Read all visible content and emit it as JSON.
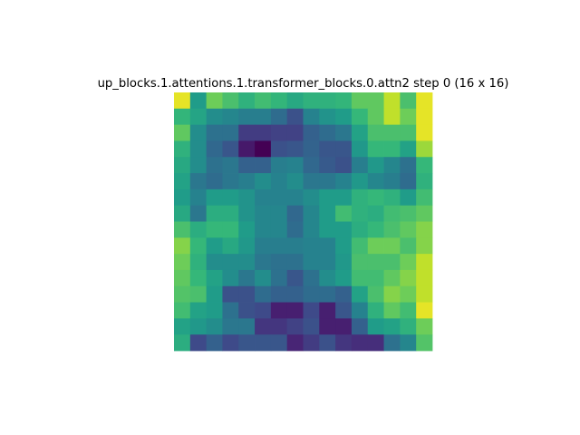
{
  "chart_data": {
    "type": "heatmap",
    "title": "up_blocks.1.attentions.1.transformer_blocks.0.attn2 step 0 (16 x 16)",
    "xlabel": "",
    "ylabel": "",
    "rows": 16,
    "cols": 16,
    "colormap": "viridis",
    "value_range": [
      0,
      1
    ],
    "axes_visible": false,
    "grid": false,
    "values": [
      [
        0.98,
        0.62,
        0.88,
        0.8,
        0.72,
        0.78,
        0.74,
        0.68,
        0.72,
        0.72,
        0.74,
        0.85,
        0.85,
        0.95,
        0.8,
        0.98
      ],
      [
        0.74,
        0.66,
        0.55,
        0.52,
        0.48,
        0.48,
        0.4,
        0.28,
        0.5,
        0.58,
        0.62,
        0.75,
        0.85,
        0.95,
        0.88,
        0.98
      ],
      [
        0.85,
        0.55,
        0.42,
        0.42,
        0.2,
        0.2,
        0.22,
        0.22,
        0.35,
        0.4,
        0.45,
        0.65,
        0.8,
        0.8,
        0.8,
        0.98
      ],
      [
        0.72,
        0.55,
        0.38,
        0.3,
        0.08,
        0.0,
        0.28,
        0.3,
        0.36,
        0.3,
        0.3,
        0.6,
        0.75,
        0.75,
        0.65,
        0.92
      ],
      [
        0.68,
        0.55,
        0.42,
        0.45,
        0.35,
        0.35,
        0.48,
        0.5,
        0.38,
        0.32,
        0.28,
        0.48,
        0.6,
        0.52,
        0.42,
        0.75
      ],
      [
        0.65,
        0.45,
        0.4,
        0.45,
        0.48,
        0.55,
        0.5,
        0.55,
        0.45,
        0.45,
        0.5,
        0.6,
        0.52,
        0.48,
        0.4,
        0.72
      ],
      [
        0.62,
        0.5,
        0.62,
        0.62,
        0.58,
        0.5,
        0.5,
        0.5,
        0.55,
        0.62,
        0.62,
        0.72,
        0.75,
        0.72,
        0.62,
        0.78
      ],
      [
        0.68,
        0.45,
        0.7,
        0.7,
        0.58,
        0.52,
        0.52,
        0.38,
        0.52,
        0.62,
        0.78,
        0.72,
        0.7,
        0.78,
        0.8,
        0.85
      ],
      [
        0.8,
        0.7,
        0.75,
        0.75,
        0.62,
        0.52,
        0.52,
        0.4,
        0.52,
        0.62,
        0.62,
        0.7,
        0.75,
        0.8,
        0.85,
        0.9
      ],
      [
        0.9,
        0.75,
        0.62,
        0.68,
        0.6,
        0.48,
        0.48,
        0.48,
        0.5,
        0.5,
        0.62,
        0.78,
        0.88,
        0.88,
        0.8,
        0.9
      ],
      [
        0.88,
        0.72,
        0.55,
        0.55,
        0.55,
        0.45,
        0.42,
        0.42,
        0.5,
        0.5,
        0.6,
        0.8,
        0.8,
        0.8,
        0.88,
        0.95
      ],
      [
        0.85,
        0.75,
        0.65,
        0.55,
        0.45,
        0.55,
        0.42,
        0.3,
        0.42,
        0.55,
        0.62,
        0.78,
        0.78,
        0.85,
        0.9,
        0.95
      ],
      [
        0.82,
        0.8,
        0.62,
        0.28,
        0.28,
        0.4,
        0.35,
        0.35,
        0.4,
        0.4,
        0.35,
        0.65,
        0.8,
        0.9,
        0.88,
        0.95
      ],
      [
        0.78,
        0.65,
        0.62,
        0.42,
        0.28,
        0.25,
        0.1,
        0.1,
        0.25,
        0.1,
        0.3,
        0.5,
        0.72,
        0.85,
        0.78,
        0.98
      ],
      [
        0.65,
        0.6,
        0.55,
        0.45,
        0.45,
        0.18,
        0.18,
        0.22,
        0.28,
        0.1,
        0.1,
        0.35,
        0.62,
        0.65,
        0.72,
        0.88
      ],
      [
        0.7,
        0.25,
        0.35,
        0.25,
        0.3,
        0.3,
        0.3,
        0.12,
        0.2,
        0.28,
        0.18,
        0.15,
        0.15,
        0.42,
        0.52,
        0.82
      ]
    ]
  }
}
